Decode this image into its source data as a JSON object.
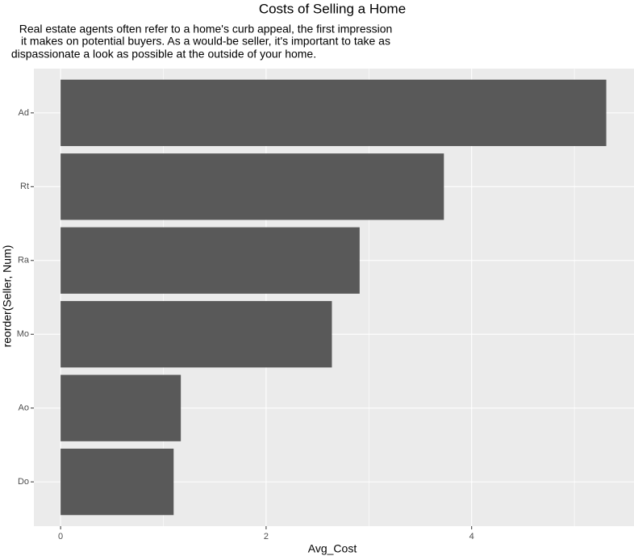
{
  "chart_data": {
    "type": "bar",
    "orientation": "horizontal",
    "title": "Costs of Selling a Home",
    "subtitle": [
      "Real estate agents often refer to a home's curb appeal, the first impression",
      "it makes on potential buyers. As a would-be seller, it's important to take as",
      "dispassionate a look as possible at the outside of your home."
    ],
    "x_label": "Avg_Cost",
    "y_label": "reorder(Seller, Num)",
    "categories": [
      "Ad",
      "Rt",
      "Ra",
      "Mo",
      "Ao",
      "Do"
    ],
    "values": [
      5.31,
      3.73,
      2.91,
      2.64,
      1.17,
      1.1
    ],
    "color": "#595959",
    "xlim": [
      -0.26,
      5.58
    ],
    "xticks": [
      0,
      2,
      4
    ],
    "x_minor_ticks": [
      1,
      3,
      5
    ],
    "grid": true
  }
}
